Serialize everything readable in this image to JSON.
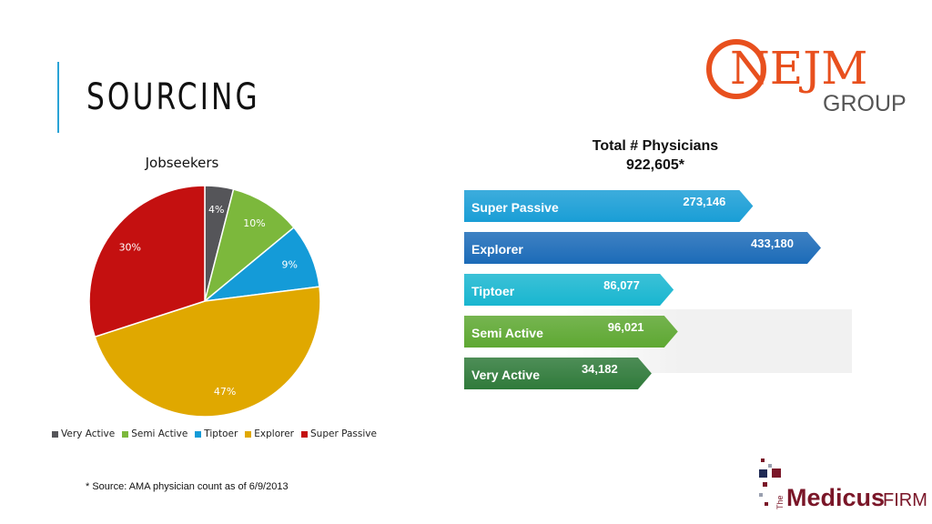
{
  "slide": {
    "title": "SOURCING",
    "source_note": "* Source: AMA physician count as of 6/9/2013"
  },
  "chart_data": [
    {
      "type": "pie",
      "title": "Jobseekers",
      "slices": [
        {
          "name": "Very Active",
          "value": 4,
          "label": "4%",
          "color": "#555559"
        },
        {
          "name": "Semi Active",
          "value": 10,
          "label": "10%",
          "color": "#7cb83c"
        },
        {
          "name": "Tiptoer",
          "value": 9,
          "label": "9%",
          "color": "#149bd8"
        },
        {
          "name": "Explorer",
          "value": 47,
          "label": "47%",
          "color": "#e0a800"
        },
        {
          "name": "Super Passive",
          "value": 30,
          "label": "30%",
          "color": "#c41010"
        }
      ],
      "legend": [
        "Very Active",
        "Semi Active",
        "Tiptoer",
        "Explorer",
        "Super Passive"
      ],
      "legend_position": "bottom"
    },
    {
      "type": "bar",
      "title": "Total # Physicians",
      "subtitle": "922,605*",
      "orientation": "horizontal",
      "bars": [
        {
          "category": "Super Passive",
          "value": 273146,
          "label": "273,146",
          "color": "#1a9ed6"
        },
        {
          "category": "Explorer",
          "value": 433180,
          "label": "433,180",
          "color": "#1c6bb8"
        },
        {
          "category": "Tiptoer",
          "value": 86077,
          "label": "86,077",
          "color": "#19b6d0"
        },
        {
          "category": "Semi Active",
          "value": 96021,
          "label": "96,021",
          "color": "#5ea832"
        },
        {
          "category": "Very Active",
          "value": 34182,
          "label": "34,182",
          "color": "#2f7a3a"
        }
      ]
    }
  ],
  "logos": {
    "nejm_text": "NEJM",
    "nejm_group": "GROUP",
    "medicus_the": "The",
    "medicus_main": "Medicus",
    "medicus_firm": "FIRM",
    "nejm_color": "#e8501e",
    "medicus_color": "#7a1628"
  }
}
